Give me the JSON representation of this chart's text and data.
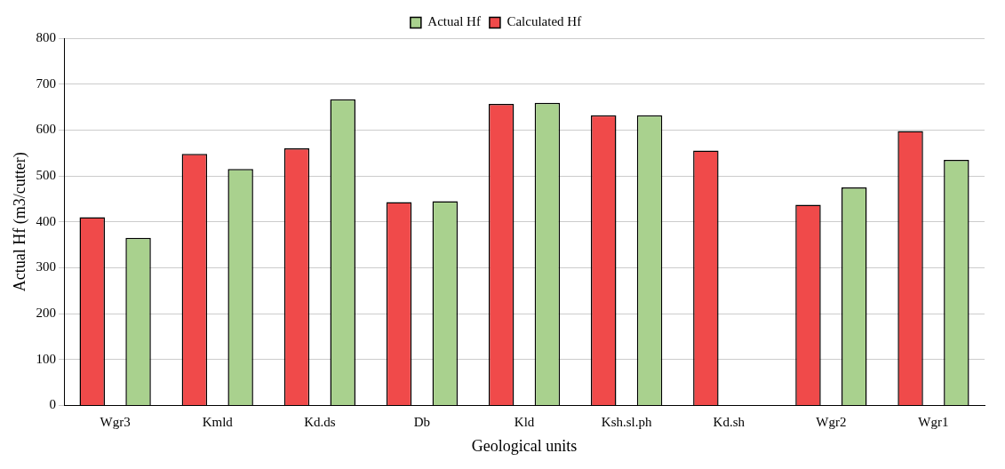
{
  "chart_data": {
    "type": "bar",
    "xlabel": "Geological units",
    "ylabel": "Actual Hf (m3/cutter)",
    "categories": [
      "Wgr3",
      "Kmld",
      "Kd.ds",
      "Db",
      "Kld",
      "Ksh.sl.ph",
      "Kd.sh",
      "Wgr2",
      "Wgr1"
    ],
    "series": [
      {
        "name": "Calculated Hf",
        "color": "#f04a4a",
        "values": [
          410,
          548,
          560,
          443,
          657,
          632,
          555,
          437,
          598
        ]
      },
      {
        "name": "Actual Hf",
        "color": "#a9d18e",
        "values": [
          365,
          515,
          667,
          445,
          659,
          632,
          null,
          475,
          535
        ]
      }
    ],
    "ylim": [
      0,
      800
    ],
    "yticks": [
      0,
      100,
      200,
      300,
      400,
      500,
      600,
      700,
      800
    ],
    "grid": "y",
    "legend": "top"
  }
}
